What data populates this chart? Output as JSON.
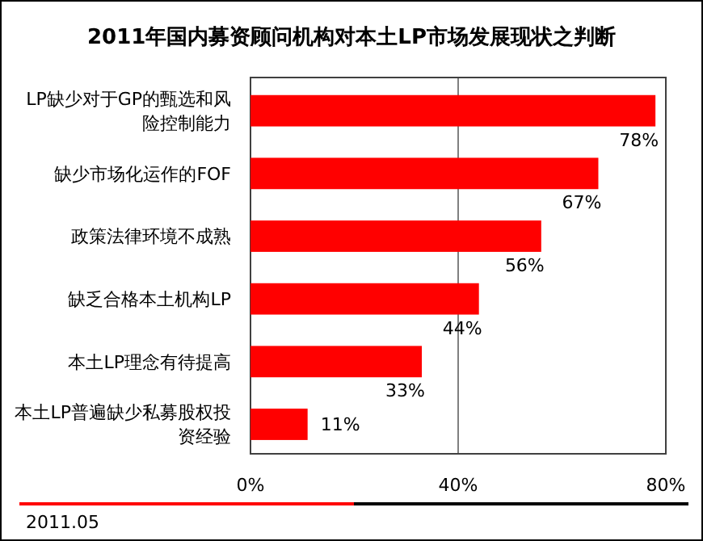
{
  "chart_data": {
    "type": "bar",
    "orientation": "horizontal",
    "title": "2011年国内募资顾问机构对本土LP市场发展现状之判断",
    "categories": [
      "LP缺少对于GP的甄选和风险控制能力",
      "缺少市场化运作的FOF",
      "政策法律环境不成熟",
      "缺乏合格本土机构LP",
      "本土LP理念有待提高",
      "本土LP普遍缺少私募股权投资经验"
    ],
    "values": [
      78,
      67,
      56,
      44,
      33,
      11
    ],
    "value_labels": [
      "78%",
      "67%",
      "56%",
      "44%",
      "33%",
      "11%"
    ],
    "color": "#ff0000",
    "xlim": [
      0,
      80
    ],
    "xticks": [
      {
        "value": 0,
        "label": "0%"
      },
      {
        "value": 40,
        "label": "40%"
      },
      {
        "value": 80,
        "label": "80%"
      }
    ],
    "grid": "x",
    "annotations": [
      "2011.05"
    ]
  }
}
